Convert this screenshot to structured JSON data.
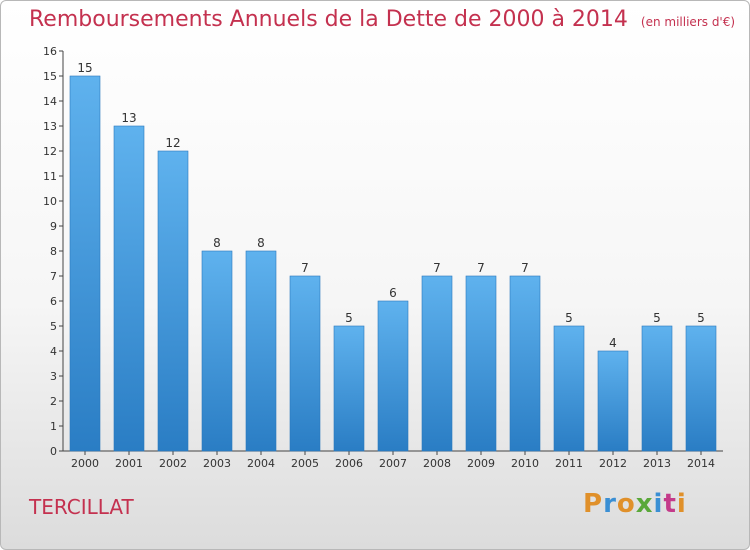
{
  "header": {
    "title": "Remboursements Annuels de la Dette de 2000 à 2014",
    "unit": "(en milliers d'€)"
  },
  "footer": {
    "place": "TERCILLAT",
    "logo": [
      "P",
      "r",
      "o",
      "x",
      "i",
      "t",
      "i"
    ]
  },
  "colors": {
    "title": "#c4314f",
    "bar_top": "#5fb2ee",
    "bar_bottom": "#2a7dc4"
  },
  "chart_data": {
    "type": "bar",
    "title": "Remboursements Annuels de la Dette de 2000 à 2014",
    "xlabel": "",
    "ylabel": "",
    "categories": [
      "2000",
      "2001",
      "2002",
      "2003",
      "2004",
      "2005",
      "2006",
      "2007",
      "2008",
      "2009",
      "2010",
      "2011",
      "2012",
      "2013",
      "2014"
    ],
    "values": [
      15,
      13,
      12,
      8,
      8,
      7,
      5,
      6,
      7,
      7,
      7,
      5,
      4,
      5,
      5
    ],
    "yticks": [
      0,
      1,
      2,
      3,
      4,
      5,
      6,
      7,
      8,
      9,
      10,
      11,
      12,
      13,
      14,
      15,
      16
    ],
    "ylim": [
      0,
      16
    ],
    "grid": false,
    "legend": "none"
  }
}
